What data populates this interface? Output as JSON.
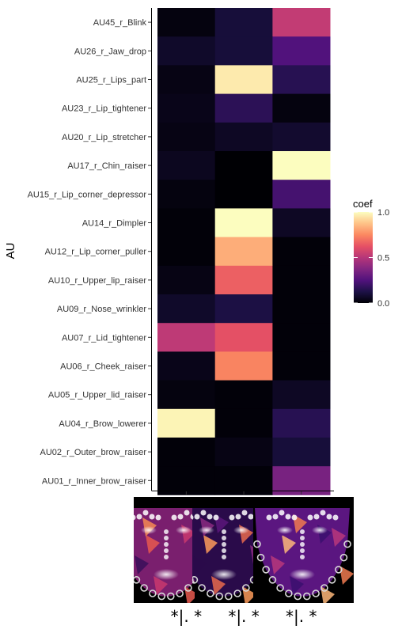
{
  "chart_data": {
    "type": "heatmap",
    "ylabel": "AU",
    "xlabel": "",
    "legend": {
      "title": "coef",
      "placement": "right",
      "ticks": [
        1.0,
        0.5,
        0.0
      ],
      "tick_labels": [
        "1.0",
        "0.5",
        "0.0"
      ]
    },
    "colormap": [
      "#000004",
      "#1d1147",
      "#51127c",
      "#822681",
      "#b63679",
      "#e65164",
      "#fb8861",
      "#fec287",
      "#fcfdbf"
    ],
    "columns": [
      "*|. *",
      "*|. *",
      "*|. *"
    ],
    "rows": [
      "AU45_r_Blink",
      "AU26_r_Jaw_drop",
      "AU25_r_Lips_part",
      "AU23_r_Lip_tightener",
      "AU20_r_Lip_stretcher",
      "AU17_r_Chin_raiser",
      "AU15_r_Lip_corner_depressor",
      "AU14_r_Dimpler",
      "AU12_r_Lip_corner_puller",
      "AU10_r_Upper_lip_raiser",
      "AU09_r_Nose_wrinkler",
      "AU07_r_Lid_tightener",
      "AU06_r_Cheek_raiser",
      "AU05_r_Upper_lid_raiser",
      "AU04_r_Brow_lowerer",
      "AU02_r_Outer_brow_raiser",
      "AU01_r_Inner_brow_raiser"
    ],
    "values": [
      [
        0.02,
        0.1,
        0.53
      ],
      [
        0.07,
        0.1,
        0.25
      ],
      [
        0.03,
        0.96,
        0.15
      ],
      [
        0.04,
        0.16,
        0.02
      ],
      [
        0.03,
        0.06,
        0.08
      ],
      [
        0.05,
        0.0,
        1.0
      ],
      [
        0.02,
        0.0,
        0.22
      ],
      [
        0.01,
        1.0,
        0.06
      ],
      [
        0.01,
        0.83,
        0.01
      ],
      [
        0.03,
        0.66,
        0.01
      ],
      [
        0.07,
        0.12,
        0.01
      ],
      [
        0.52,
        0.62,
        0.01
      ],
      [
        0.04,
        0.74,
        0.01
      ],
      [
        0.02,
        0.01,
        0.06
      ],
      [
        0.98,
        0.01,
        0.15
      ],
      [
        0.01,
        0.03,
        0.1
      ],
      [
        0.01,
        0.01,
        0.35
      ]
    ]
  }
}
